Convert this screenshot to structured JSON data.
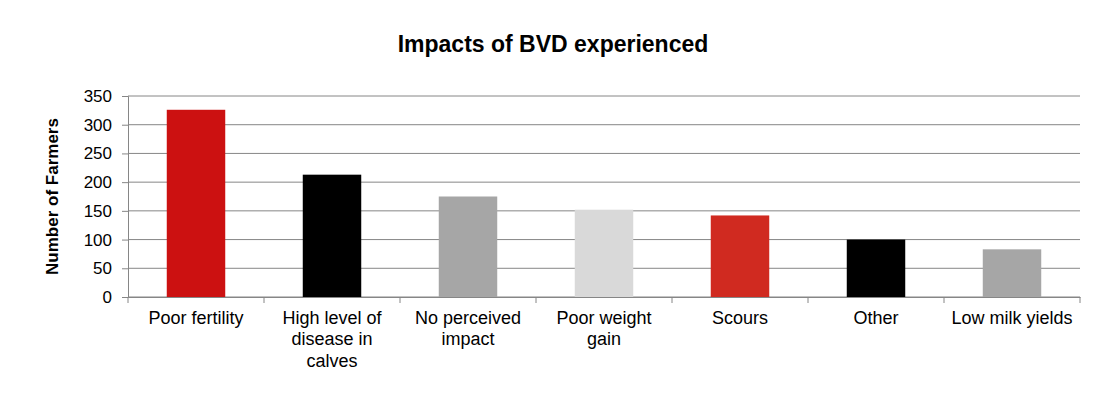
{
  "chart_data": {
    "type": "bar",
    "title": "Impacts of BVD experienced",
    "y_label": "Number of Farmers",
    "categories": [
      "Poor fertility",
      "High level of disease in calves",
      "No perceived impact",
      "Poor weight gain",
      "Scours",
      "Other",
      "Low milk yields"
    ],
    "values": [
      326,
      213,
      175,
      152,
      142,
      100,
      83
    ],
    "colors": [
      "#cc1111",
      "#000000",
      "#a6a6a6",
      "#d9d9d9",
      "#d02a20",
      "#000000",
      "#a6a6a6"
    ],
    "ylim": [
      0,
      350
    ],
    "yticks": [
      0,
      50,
      100,
      150,
      200,
      250,
      300,
      350
    ],
    "grid": true
  }
}
